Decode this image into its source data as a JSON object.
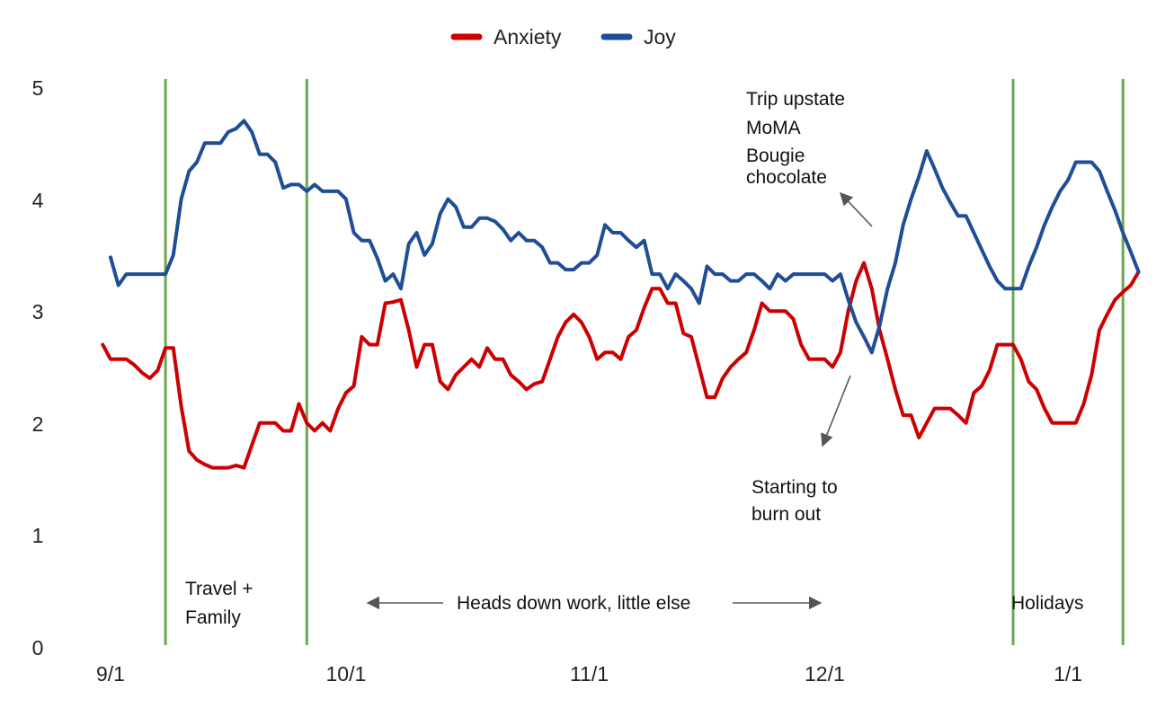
{
  "chart_data": {
    "type": "line",
    "x_start": "9/1",
    "x_range_days": [
      0,
      131
    ],
    "ylim": [
      0,
      5
    ],
    "y_ticks": [
      "0",
      "1",
      "2",
      "3",
      "4",
      "5"
    ],
    "x_ticks": [
      {
        "day": 0,
        "label": "9/1"
      },
      {
        "day": 30,
        "label": "10/1"
      },
      {
        "day": 61,
        "label": "11/1"
      },
      {
        "day": 91,
        "label": "12/1"
      },
      {
        "day": 122,
        "label": "1/1"
      }
    ],
    "grid": false,
    "legend_position": "top-center",
    "series": [
      {
        "name": "Anxiety",
        "color": "#cc0000",
        "points": [
          [
            -1,
            2.7
          ],
          [
            0,
            2.57
          ],
          [
            1,
            2.57
          ],
          [
            2,
            2.57
          ],
          [
            3,
            2.52
          ],
          [
            4,
            2.45
          ],
          [
            5,
            2.4
          ],
          [
            6,
            2.47
          ],
          [
            7,
            2.67
          ],
          [
            8,
            2.67
          ],
          [
            9,
            2.15
          ],
          [
            10,
            1.75
          ],
          [
            11,
            1.67
          ],
          [
            12,
            1.63
          ],
          [
            13,
            1.6
          ],
          [
            14,
            1.6
          ],
          [
            15,
            1.6
          ],
          [
            16,
            1.62
          ],
          [
            17,
            1.6
          ],
          [
            18,
            1.8
          ],
          [
            19,
            2.0
          ],
          [
            20,
            2.0
          ],
          [
            21,
            2.0
          ],
          [
            22,
            1.93
          ],
          [
            23,
            1.93
          ],
          [
            24,
            2.17
          ],
          [
            25,
            2.0
          ],
          [
            26,
            1.93
          ],
          [
            27,
            2.0
          ],
          [
            28,
            1.93
          ],
          [
            29,
            2.13
          ],
          [
            30,
            2.27
          ],
          [
            31,
            2.33
          ],
          [
            32,
            2.77
          ],
          [
            33,
            2.7
          ],
          [
            34,
            2.7
          ],
          [
            35,
            3.07
          ],
          [
            36,
            3.08
          ],
          [
            37,
            3.1
          ],
          [
            38,
            2.83
          ],
          [
            39,
            2.5
          ],
          [
            40,
            2.7
          ],
          [
            41,
            2.7
          ],
          [
            42,
            2.37
          ],
          [
            43,
            2.3
          ],
          [
            44,
            2.43
          ],
          [
            45,
            2.5
          ],
          [
            46,
            2.57
          ],
          [
            47,
            2.5
          ],
          [
            48,
            2.67
          ],
          [
            49,
            2.57
          ],
          [
            50,
            2.57
          ],
          [
            51,
            2.43
          ],
          [
            52,
            2.37
          ],
          [
            53,
            2.3
          ],
          [
            54,
            2.35
          ],
          [
            55,
            2.37
          ],
          [
            56,
            2.57
          ],
          [
            57,
            2.77
          ],
          [
            58,
            2.9
          ],
          [
            59,
            2.97
          ],
          [
            60,
            2.9
          ],
          [
            61,
            2.77
          ],
          [
            62,
            2.57
          ],
          [
            63,
            2.63
          ],
          [
            64,
            2.63
          ],
          [
            65,
            2.57
          ],
          [
            66,
            2.77
          ],
          [
            67,
            2.83
          ],
          [
            68,
            3.03
          ],
          [
            69,
            3.2
          ],
          [
            70,
            3.2
          ],
          [
            71,
            3.07
          ],
          [
            72,
            3.07
          ],
          [
            73,
            2.8
          ],
          [
            74,
            2.77
          ],
          [
            75,
            2.5
          ],
          [
            76,
            2.23
          ],
          [
            77,
            2.23
          ],
          [
            78,
            2.4
          ],
          [
            79,
            2.5
          ],
          [
            80,
            2.57
          ],
          [
            81,
            2.63
          ],
          [
            82,
            2.83
          ],
          [
            83,
            3.07
          ],
          [
            84,
            3.0
          ],
          [
            85,
            3.0
          ],
          [
            86,
            3.0
          ],
          [
            87,
            2.93
          ],
          [
            88,
            2.7
          ],
          [
            89,
            2.57
          ],
          [
            90,
            2.57
          ],
          [
            91,
            2.57
          ],
          [
            92,
            2.5
          ],
          [
            93,
            2.63
          ],
          [
            94,
            3.0
          ],
          [
            95,
            3.27
          ],
          [
            96,
            3.43
          ],
          [
            97,
            3.2
          ],
          [
            98,
            2.83
          ],
          [
            99,
            2.57
          ],
          [
            100,
            2.3
          ],
          [
            101,
            2.07
          ],
          [
            102,
            2.07
          ],
          [
            103,
            1.87
          ],
          [
            104,
            2.0
          ],
          [
            105,
            2.13
          ],
          [
            106,
            2.13
          ],
          [
            107,
            2.13
          ],
          [
            108,
            2.07
          ],
          [
            109,
            2.0
          ],
          [
            110,
            2.27
          ],
          [
            111,
            2.33
          ],
          [
            112,
            2.47
          ],
          [
            113,
            2.7
          ],
          [
            114,
            2.7
          ],
          [
            115,
            2.7
          ],
          [
            116,
            2.57
          ],
          [
            117,
            2.37
          ],
          [
            118,
            2.3
          ],
          [
            119,
            2.13
          ],
          [
            120,
            2.0
          ],
          [
            121,
            2.0
          ],
          [
            122,
            2.0
          ],
          [
            123,
            2.0
          ],
          [
            124,
            2.17
          ],
          [
            125,
            2.43
          ],
          [
            126,
            2.83
          ],
          [
            127,
            2.97
          ],
          [
            128,
            3.1
          ],
          [
            129,
            3.17
          ],
          [
            130,
            3.23
          ],
          [
            131,
            3.35
          ]
        ]
      },
      {
        "name": "Joy",
        "color": "#1f4e96",
        "points": [
          [
            0,
            3.48
          ],
          [
            1,
            3.23
          ],
          [
            2,
            3.33
          ],
          [
            3,
            3.33
          ],
          [
            4,
            3.33
          ],
          [
            5,
            3.33
          ],
          [
            6,
            3.33
          ],
          [
            7,
            3.33
          ],
          [
            8,
            3.5
          ],
          [
            9,
            4.0
          ],
          [
            10,
            4.25
          ],
          [
            11,
            4.33
          ],
          [
            12,
            4.5
          ],
          [
            13,
            4.5
          ],
          [
            14,
            4.5
          ],
          [
            15,
            4.6
          ],
          [
            16,
            4.63
          ],
          [
            17,
            4.7
          ],
          [
            18,
            4.6
          ],
          [
            19,
            4.4
          ],
          [
            20,
            4.4
          ],
          [
            21,
            4.33
          ],
          [
            22,
            4.1
          ],
          [
            23,
            4.13
          ],
          [
            24,
            4.13
          ],
          [
            25,
            4.07
          ],
          [
            26,
            4.13
          ],
          [
            27,
            4.07
          ],
          [
            28,
            4.07
          ],
          [
            29,
            4.07
          ],
          [
            30,
            4.0
          ],
          [
            31,
            3.7
          ],
          [
            32,
            3.63
          ],
          [
            33,
            3.63
          ],
          [
            34,
            3.47
          ],
          [
            35,
            3.27
          ],
          [
            36,
            3.33
          ],
          [
            37,
            3.2
          ],
          [
            38,
            3.6
          ],
          [
            39,
            3.7
          ],
          [
            40,
            3.5
          ],
          [
            41,
            3.6
          ],
          [
            42,
            3.87
          ],
          [
            43,
            4.0
          ],
          [
            44,
            3.93
          ],
          [
            45,
            3.75
          ],
          [
            46,
            3.75
          ],
          [
            47,
            3.83
          ],
          [
            48,
            3.83
          ],
          [
            49,
            3.8
          ],
          [
            50,
            3.73
          ],
          [
            51,
            3.63
          ],
          [
            52,
            3.7
          ],
          [
            53,
            3.63
          ],
          [
            54,
            3.63
          ],
          [
            55,
            3.57
          ],
          [
            56,
            3.43
          ],
          [
            57,
            3.43
          ],
          [
            58,
            3.37
          ],
          [
            59,
            3.37
          ],
          [
            60,
            3.43
          ],
          [
            61,
            3.43
          ],
          [
            62,
            3.5
          ],
          [
            63,
            3.77
          ],
          [
            64,
            3.7
          ],
          [
            65,
            3.7
          ],
          [
            66,
            3.63
          ],
          [
            67,
            3.57
          ],
          [
            68,
            3.63
          ],
          [
            69,
            3.33
          ],
          [
            70,
            3.33
          ],
          [
            71,
            3.2
          ],
          [
            72,
            3.33
          ],
          [
            73,
            3.27
          ],
          [
            74,
            3.2
          ],
          [
            75,
            3.07
          ],
          [
            76,
            3.4
          ],
          [
            77,
            3.33
          ],
          [
            78,
            3.33
          ],
          [
            79,
            3.27
          ],
          [
            80,
            3.27
          ],
          [
            81,
            3.33
          ],
          [
            82,
            3.33
          ],
          [
            83,
            3.27
          ],
          [
            84,
            3.2
          ],
          [
            85,
            3.33
          ],
          [
            86,
            3.27
          ],
          [
            87,
            3.33
          ],
          [
            88,
            3.33
          ],
          [
            89,
            3.33
          ],
          [
            90,
            3.33
          ],
          [
            91,
            3.33
          ],
          [
            92,
            3.27
          ],
          [
            93,
            3.33
          ],
          [
            94,
            3.1
          ],
          [
            95,
            2.9
          ],
          [
            96,
            2.77
          ],
          [
            97,
            2.63
          ],
          [
            98,
            2.87
          ],
          [
            99,
            3.2
          ],
          [
            100,
            3.43
          ],
          [
            101,
            3.77
          ],
          [
            102,
            4.0
          ],
          [
            103,
            4.2
          ],
          [
            104,
            4.43
          ],
          [
            105,
            4.27
          ],
          [
            106,
            4.1
          ],
          [
            107,
            3.97
          ],
          [
            108,
            3.85
          ],
          [
            109,
            3.85
          ],
          [
            110,
            3.7
          ],
          [
            111,
            3.55
          ],
          [
            112,
            3.4
          ],
          [
            113,
            3.27
          ],
          [
            114,
            3.2
          ],
          [
            115,
            3.2
          ],
          [
            116,
            3.2
          ],
          [
            117,
            3.4
          ],
          [
            118,
            3.57
          ],
          [
            119,
            3.77
          ],
          [
            120,
            3.93
          ],
          [
            121,
            4.07
          ],
          [
            122,
            4.17
          ],
          [
            123,
            4.33
          ],
          [
            124,
            4.33
          ],
          [
            125,
            4.33
          ],
          [
            126,
            4.25
          ],
          [
            127,
            4.07
          ],
          [
            128,
            3.9
          ],
          [
            129,
            3.7
          ],
          [
            130,
            3.53
          ],
          [
            131,
            3.35
          ]
        ]
      }
    ],
    "event_lines": [
      {
        "day": 7,
        "color": "#6aa84f"
      },
      {
        "day": 25,
        "color": "#6aa84f"
      },
      {
        "day": 115,
        "color": "#6aa84f"
      },
      {
        "day": 129,
        "color": "#6aa84f"
      }
    ],
    "annotations": [
      {
        "name": "annotation-travel-family",
        "lines": [
          "Travel +",
          "Family"
        ]
      },
      {
        "name": "annotation-heads-down",
        "lines": [
          "Heads down work, little else"
        ]
      },
      {
        "name": "annotation-holidays",
        "lines": [
          "Holidays"
        ]
      },
      {
        "name": "annotation-trip-upstate",
        "lines": [
          "Trip upstate",
          "MoMA",
          "Bougie",
          "chocolate"
        ]
      },
      {
        "name": "annotation-burn-out",
        "lines": [
          "Starting to",
          "burn out"
        ]
      }
    ]
  }
}
